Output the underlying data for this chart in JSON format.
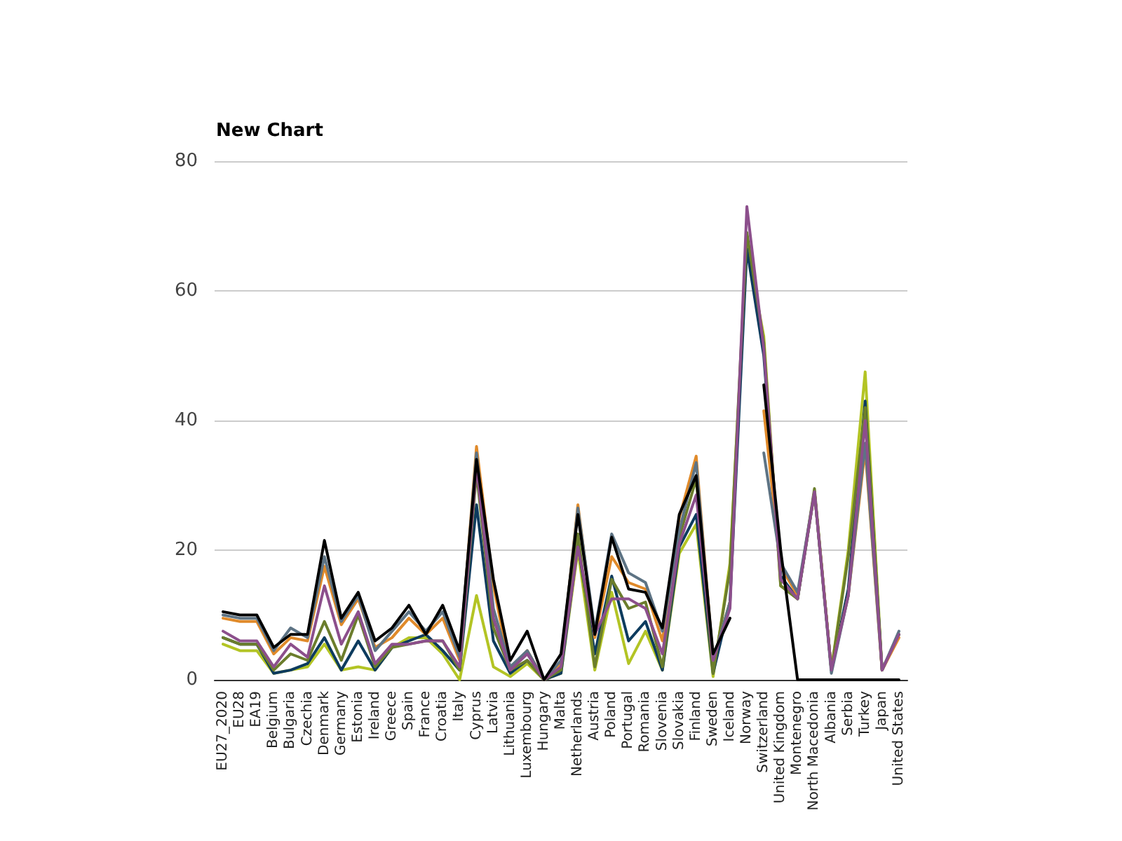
{
  "chart_data": {
    "type": "line",
    "title": "New Chart",
    "categories": [
      "EU27_2020",
      "EU28",
      "EA19",
      "Belgium",
      "Bulgaria",
      "Czechia",
      "Denmark",
      "Germany",
      "Estonia",
      "Ireland",
      "Greece",
      "Spain",
      "France",
      "Croatia",
      "Italy",
      "Cyprus",
      "Latvia",
      "Lithuania",
      "Luxembourg",
      "Hungary",
      "Malta",
      "Netherlands",
      "Austria",
      "Poland",
      "Portugal",
      "Romania",
      "Slovenia",
      "Slovakia",
      "Finland",
      "Sweden",
      "Iceland",
      "Norway",
      "Switzerland",
      "United Kingdom",
      "Montenegro",
      "North Macedonia",
      "Albania",
      "Serbia",
      "Turkey",
      "Japan",
      "United States"
    ],
    "series": [
      {
        "color": "#b3c424",
        "values": [
          5.5,
          4.5,
          4.5,
          1,
          1.5,
          2,
          5.5,
          1.5,
          2,
          1.5,
          5,
          6.5,
          6.5,
          4,
          0,
          13,
          2,
          0.5,
          2.5,
          0,
          1,
          20,
          1.5,
          13.5,
          2.5,
          7.5,
          1.5,
          19.5,
          24,
          0.5,
          18,
          67,
          53,
          14.5,
          12.5,
          29,
          1.5,
          20,
          47.5,
          1.5,
          7
        ]
      },
      {
        "color": "#0d3b5e",
        "values": [
          6.5,
          5.5,
          5.5,
          1,
          1.5,
          2.5,
          6.5,
          1.5,
          6,
          1.5,
          5,
          6,
          7,
          4.5,
          1.5,
          27,
          6,
          1,
          3,
          0,
          1,
          21,
          4,
          16,
          6,
          9,
          1.5,
          20.5,
          25.5,
          1,
          12,
          66.5,
          50,
          16,
          12.5,
          29,
          1.5,
          14,
          43,
          1.5,
          7
        ]
      },
      {
        "color": "#6b7d2c",
        "values": [
          6.5,
          5.5,
          5.5,
          1.5,
          4,
          3,
          9,
          3,
          10,
          2,
          5,
          5.5,
          6,
          6,
          1.5,
          32,
          8,
          1.5,
          3,
          0,
          1.5,
          22.5,
          2,
          15.5,
          11,
          12,
          2,
          22,
          31,
          1,
          17,
          69,
          52,
          14.5,
          12.5,
          29.5,
          1.5,
          19,
          42,
          1.5,
          7
        ]
      },
      {
        "color": "#e08a2a",
        "values": [
          9.5,
          9,
          9,
          4,
          6.5,
          6,
          17.5,
          8.5,
          12.5,
          5,
          6.5,
          9.5,
          7,
          9.5,
          3,
          36,
          14.5,
          1.5,
          4.5,
          0,
          2.5,
          27,
          6.5,
          19,
          15,
          14,
          6,
          25,
          34.5,
          3,
          12,
          null,
          41.5,
          17.5,
          13,
          29,
          1.5,
          13,
          35.5,
          1.5,
          6.5
        ]
      },
      {
        "color": "#5d7384",
        "values": [
          10,
          9.5,
          9.5,
          4.5,
          8,
          6.5,
          19,
          9,
          13,
          4.5,
          7.5,
          10.5,
          7.5,
          10.5,
          3.5,
          35,
          11,
          2,
          4.5,
          0,
          3,
          26.5,
          7.5,
          22.5,
          16.5,
          15,
          7.5,
          23,
          33.5,
          3,
          12,
          null,
          35,
          18,
          13.5,
          29,
          1,
          13,
          36.5,
          1.5,
          7.5
        ]
      },
      {
        "color": "#8c4f8c",
        "values": [
          7.5,
          6,
          6,
          2,
          5.5,
          3.5,
          14.5,
          5.5,
          10.5,
          2.5,
          5.5,
          5.5,
          6,
          6,
          2,
          33,
          9.5,
          1.5,
          4,
          0,
          2,
          20.5,
          7,
          12.5,
          12.5,
          11,
          4,
          21,
          28.5,
          3,
          11,
          73,
          51,
          15.5,
          12.5,
          29,
          1.5,
          13,
          40,
          1.5,
          7
        ]
      },
      {
        "color": "#000000",
        "values": [
          10.5,
          10,
          10,
          5,
          7,
          7,
          21.5,
          9.5,
          13.5,
          6,
          8,
          11.5,
          7,
          11.5,
          4.5,
          34,
          15.5,
          3,
          7.5,
          0,
          4,
          25.5,
          7,
          22,
          14,
          13.5,
          8,
          25.5,
          31.5,
          4,
          9.5,
          null,
          45.5,
          20,
          0,
          0,
          0,
          0,
          0,
          0,
          0
        ]
      }
    ],
    "ylim": [
      0,
      80
    ],
    "yticks": [
      0,
      20,
      40,
      60,
      80
    ],
    "grid": "y",
    "marker": "none"
  }
}
